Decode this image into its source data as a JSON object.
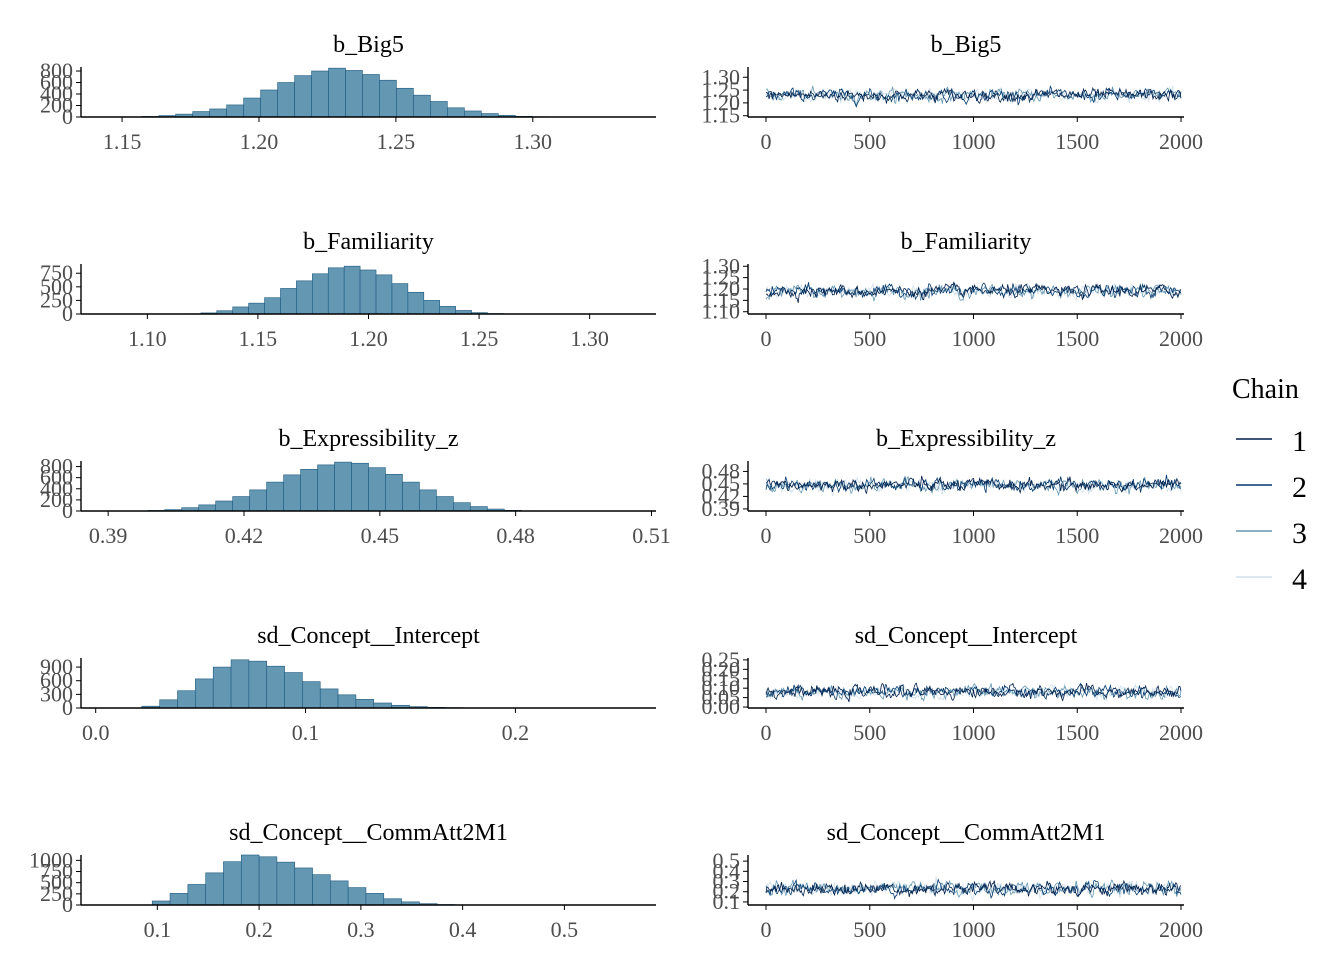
{
  "colors": {
    "hist_fill": "#6497b1",
    "hist_stroke": "#1e5a80",
    "chain_1": "#011f4b",
    "chain_2": "#03396c",
    "chain_3": "#6497b1",
    "chain_4": "#d1e1ec",
    "axis": "#000000",
    "tick_text": "#4d4d4d"
  },
  "legend": {
    "title": "Chain",
    "items": [
      "1",
      "2",
      "3",
      "4"
    ]
  },
  "chart_data": [
    {
      "type": "bar",
      "panel": "histogram",
      "title": "b_Big5",
      "xlim": [
        1.135,
        1.345
      ],
      "ylim": [
        0,
        870
      ],
      "xticks": [
        1.15,
        1.2,
        1.25,
        1.3
      ],
      "xtick_labels": [
        "1.15",
        "1.20",
        "1.25",
        "1.30"
      ],
      "yticks": [
        0,
        200,
        400,
        600,
        800
      ],
      "ytick_labels": [
        "0",
        "200",
        "400",
        "600",
        "800"
      ],
      "bin_start": 1.151,
      "bin_width": 0.0062,
      "values": [
        3,
        10,
        25,
        50,
        95,
        140,
        210,
        330,
        470,
        600,
        720,
        800,
        850,
        810,
        740,
        640,
        500,
        380,
        270,
        160,
        105,
        60,
        30,
        12,
        5
      ]
    },
    {
      "type": "line",
      "panel": "trace",
      "title": "b_Big5",
      "xlim": [
        -30,
        2090
      ],
      "ylim": [
        1.145,
        1.34
      ],
      "xticks": [
        0,
        500,
        1000,
        1500,
        2000
      ],
      "xtick_labels": [
        "0",
        "500",
        "1000",
        "1500",
        "2000"
      ],
      "yticks": [
        1.15,
        1.2,
        1.25,
        1.3
      ],
      "ytick_labels": [
        "1.15",
        "1.20",
        "1.25",
        "1.30"
      ],
      "n_iterations": 2000,
      "series_summary": {
        "mean": 1.23,
        "sd": 0.022,
        "min": 1.17,
        "max": 1.325
      }
    },
    {
      "type": "bar",
      "panel": "histogram",
      "title": "b_Familiarity",
      "xlim": [
        1.07,
        1.33
      ],
      "ylim": [
        0,
        920
      ],
      "xticks": [
        1.1,
        1.15,
        1.2,
        1.25,
        1.3
      ],
      "xtick_labels": [
        "1.10",
        "1.15",
        "1.20",
        "1.25",
        "1.30"
      ],
      "yticks": [
        0,
        250,
        500,
        750
      ],
      "ytick_labels": [
        "0",
        "250",
        "500",
        "750"
      ],
      "bin_start": 1.117,
      "bin_width": 0.0072,
      "values": [
        5,
        20,
        60,
        130,
        200,
        300,
        470,
        610,
        740,
        850,
        880,
        810,
        720,
        560,
        400,
        250,
        140,
        65,
        25,
        8
      ]
    },
    {
      "type": "line",
      "panel": "trace",
      "title": "b_Familiarity",
      "xlim": [
        -30,
        2090
      ],
      "ylim": [
        1.09,
        1.31
      ],
      "xticks": [
        0,
        500,
        1000,
        1500,
        2000
      ],
      "xtick_labels": [
        "0",
        "500",
        "1000",
        "1500",
        "2000"
      ],
      "yticks": [
        1.1,
        1.15,
        1.2,
        1.25,
        1.3
      ],
      "ytick_labels": [
        "1.10",
        "1.15",
        "1.20",
        "1.25",
        "1.30"
      ],
      "n_iterations": 2000,
      "series_summary": {
        "mean": 1.19,
        "sd": 0.025,
        "min": 1.12,
        "max": 1.3
      }
    },
    {
      "type": "bar",
      "panel": "histogram",
      "title": "b_Expressibility_z",
      "xlim": [
        0.384,
        0.511
      ],
      "ylim": [
        0,
        900
      ],
      "xticks": [
        0.39,
        0.42,
        0.45,
        0.48,
        0.51
      ],
      "xtick_labels": [
        "0.39",
        "0.42",
        "0.45",
        "0.48",
        "0.51"
      ],
      "yticks": [
        0,
        200,
        400,
        600,
        800
      ],
      "ytick_labels": [
        "0",
        "200",
        "400",
        "600",
        "800"
      ],
      "bin_start": 0.395,
      "bin_width": 0.00375,
      "values": [
        3,
        10,
        25,
        60,
        110,
        180,
        260,
        380,
        520,
        650,
        750,
        830,
        880,
        860,
        780,
        660,
        520,
        380,
        260,
        150,
        80,
        35,
        12,
        4
      ]
    },
    {
      "type": "line",
      "panel": "trace",
      "title": "b_Expressibility_z",
      "xlim": [
        -30,
        2090
      ],
      "ylim": [
        0.385,
        0.505
      ],
      "xticks": [
        0,
        500,
        1000,
        1500,
        2000
      ],
      "xtick_labels": [
        "0",
        "500",
        "1000",
        "1500",
        "2000"
      ],
      "yticks": [
        0.39,
        0.42,
        0.45,
        0.48
      ],
      "ytick_labels": [
        "0.39",
        "0.42",
        "0.45",
        "0.48"
      ],
      "n_iterations": 2000,
      "series_summary": {
        "mean": 0.447,
        "sd": 0.014,
        "min": 0.405,
        "max": 0.495
      }
    },
    {
      "type": "bar",
      "panel": "histogram",
      "title": "sd_Concept__Intercept",
      "xlim": [
        -0.007,
        0.267
      ],
      "ylim": [
        0,
        1100
      ],
      "xticks": [
        0.0,
        0.1,
        0.2
      ],
      "xtick_labels": [
        "0.0",
        "0.1",
        "0.2"
      ],
      "yticks": [
        0,
        300,
        600,
        900
      ],
      "ytick_labels": [
        "0",
        "300",
        "600",
        "900"
      ],
      "bin_start": 0.022,
      "bin_width": 0.0085,
      "values": [
        40,
        180,
        380,
        640,
        900,
        1060,
        1030,
        920,
        780,
        580,
        420,
        290,
        190,
        110,
        60,
        30,
        15,
        8
      ]
    },
    {
      "type": "line",
      "panel": "trace",
      "title": "sd_Concept__Intercept",
      "xlim": [
        -30,
        2090
      ],
      "ylim": [
        -0.005,
        0.26
      ],
      "xticks": [
        0,
        500,
        1000,
        1500,
        2000
      ],
      "xtick_labels": [
        "0",
        "500",
        "1000",
        "1500",
        "2000"
      ],
      "yticks": [
        0.0,
        0.05,
        0.1,
        0.15,
        0.2,
        0.25
      ],
      "ytick_labels": [
        "0.00",
        "0.05",
        "0.10",
        "0.15",
        "0.20",
        "0.25"
      ],
      "n_iterations": 2000,
      "series_summary": {
        "mean": 0.08,
        "sd": 0.03,
        "min": 0.01,
        "max": 0.21
      }
    },
    {
      "type": "bar",
      "panel": "histogram",
      "title": "sd_Concept__CommAtt2M1",
      "xlim": [
        0.025,
        0.59
      ],
      "ylim": [
        0,
        1120
      ],
      "xticks": [
        0.1,
        0.2,
        0.3,
        0.4,
        0.5
      ],
      "xtick_labels": [
        "0.1",
        "0.2",
        "0.3",
        "0.4",
        "0.5"
      ],
      "yticks": [
        0,
        250,
        500,
        750,
        1000
      ],
      "ytick_labels": [
        "0",
        "250",
        "500",
        "750",
        "1000"
      ],
      "bin_start": 0.095,
      "bin_width": 0.0175,
      "values": [
        90,
        260,
        460,
        720,
        970,
        1120,
        1080,
        960,
        830,
        680,
        540,
        390,
        260,
        140,
        70,
        30,
        10
      ]
    },
    {
      "type": "line",
      "panel": "trace",
      "title": "sd_Concept__CommAtt2M1",
      "xlim": [
        -30,
        2090
      ],
      "ylim": [
        0.07,
        0.56
      ],
      "xticks": [
        0,
        500,
        1000,
        1500,
        2000
      ],
      "xtick_labels": [
        "0",
        "500",
        "1000",
        "1500",
        "2000"
      ],
      "yticks": [
        0.1,
        0.2,
        0.3,
        0.4,
        0.5
      ],
      "ytick_labels": [
        "0.1",
        "0.2",
        "0.3",
        "0.4",
        "0.5"
      ],
      "n_iterations": 2000,
      "series_summary": {
        "mean": 0.23,
        "sd": 0.06,
        "min": 0.09,
        "max": 0.5
      }
    }
  ]
}
